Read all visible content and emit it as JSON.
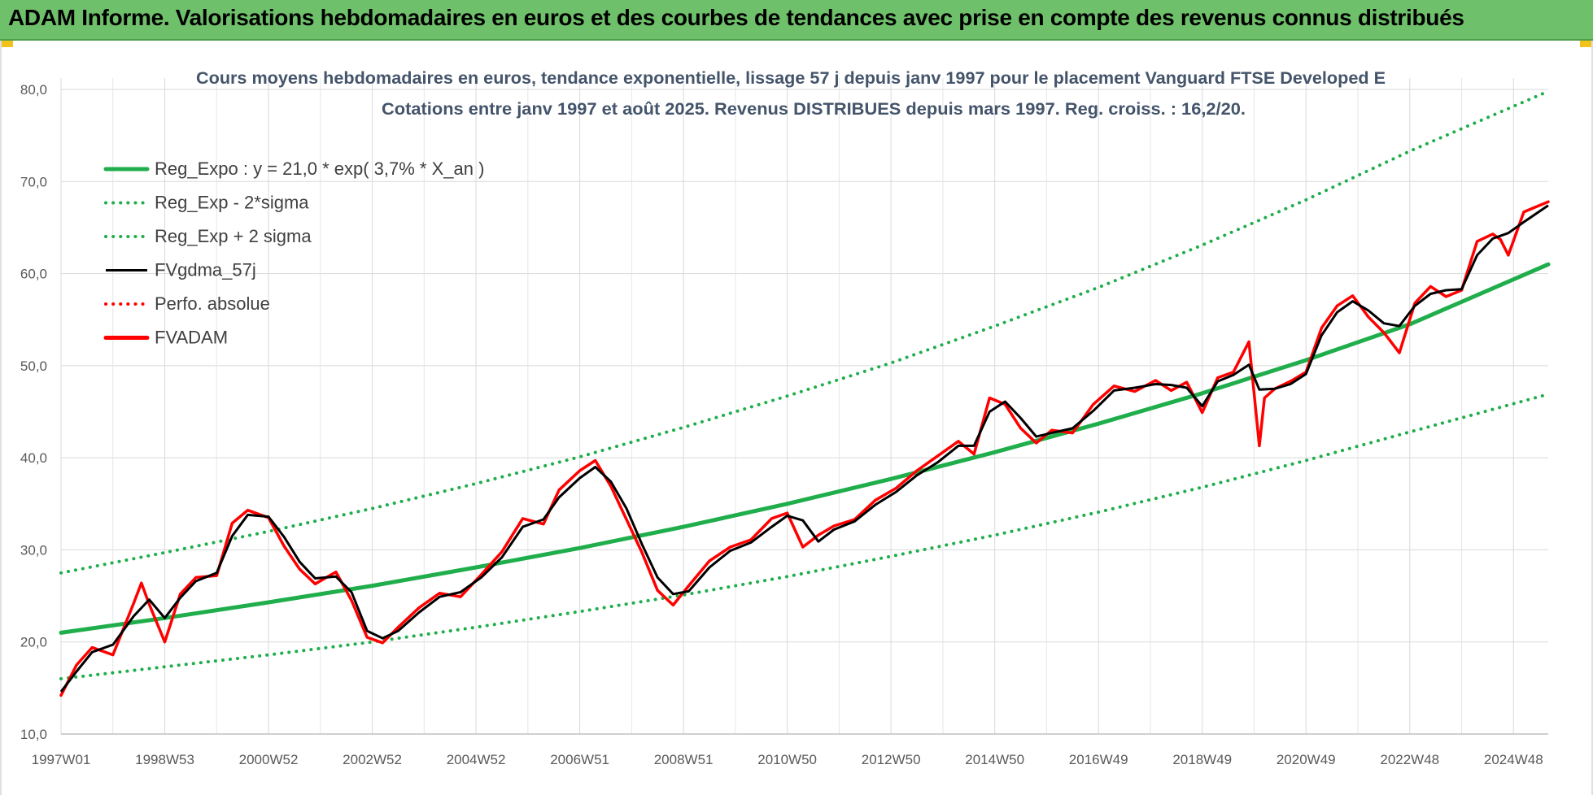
{
  "banner": {
    "title": "ADAM Informe. Valorisations hebdomadaires en euros et des courbes de tendances avec prise en compte des revenus connus distribués"
  },
  "colors": {
    "banner_bg": "#6fc06a",
    "trend_green": "#1fae4b",
    "price_red": "#ff0000",
    "smooth_black": "#000000",
    "grid": "#d9d9d9"
  },
  "chart_data": {
    "type": "line",
    "title": "Cours moyens hebdomadaires en euros, tendance exponentielle, lissage 57 j depuis janv 1997 pour le placement Vanguard FTSE Developed E",
    "subtitle": "Cotations entre janv 1997 et août 2025.  Revenus DISTRIBUES depuis mars 1997. Reg. croiss. : 16,2/20.",
    "xlabel": "",
    "ylabel": "",
    "ylim": [
      10,
      80
    ],
    "xlim": [
      1997.0,
      2025.67
    ],
    "grid": true,
    "legend_position": "top-left",
    "y_ticks": [
      "10,0",
      "20,0",
      "30,0",
      "40,0",
      "50,0",
      "60,0",
      "70,0",
      "80,0"
    ],
    "x_ticks": [
      {
        "label": "1997W01",
        "x": 1997.0
      },
      {
        "label": "1998W53",
        "x": 1999.0
      },
      {
        "label": "2000W52",
        "x": 2001.0
      },
      {
        "label": "2002W52",
        "x": 2003.0
      },
      {
        "label": "2004W52",
        "x": 2005.0
      },
      {
        "label": "2006W51",
        "x": 2007.0
      },
      {
        "label": "2008W51",
        "x": 2009.0
      },
      {
        "label": "2010W50",
        "x": 2011.0
      },
      {
        "label": "2012W50",
        "x": 2013.0
      },
      {
        "label": "2014W50",
        "x": 2015.0
      },
      {
        "label": "2016W49",
        "x": 2017.0
      },
      {
        "label": "2018W49",
        "x": 2019.0
      },
      {
        "label": "2020W49",
        "x": 2021.0
      },
      {
        "label": "2022W48",
        "x": 2023.0
      },
      {
        "label": "2024W48",
        "x": 2025.0
      }
    ],
    "legend": [
      {
        "name": "Reg_Expo : y = 21,0 * exp( 3,7% *  X_an )",
        "style": "solid-thick",
        "color": "#1fae4b"
      },
      {
        "name": "Reg_Exp - 2*sigma",
        "style": "dotted",
        "color": "#1fae4b"
      },
      {
        "name": "Reg_Exp + 2 sigma",
        "style": "dotted",
        "color": "#1fae4b"
      },
      {
        "name": "FVgdma_57j",
        "style": "solid",
        "color": "#000000"
      },
      {
        "name": "Perfo. absolue",
        "style": "dotted",
        "color": "#ff0000"
      },
      {
        "name": "FVADAM",
        "style": "solid-thick",
        "color": "#ff0000"
      }
    ],
    "series": [
      {
        "name": "Reg_Expo : y = 21,0 * exp( 3,7% *  X_an )",
        "x": [
          1997.0,
          1999.0,
          2001.0,
          2003.0,
          2005.0,
          2007.0,
          2009.0,
          2011.0,
          2013.0,
          2015.0,
          2017.0,
          2019.0,
          2021.0,
          2023.0,
          2025.67
        ],
        "values": [
          21.0,
          22.6,
          24.3,
          26.1,
          28.1,
          30.2,
          32.5,
          35.0,
          37.7,
          40.6,
          43.7,
          47.0,
          50.6,
          54.5,
          61.0
        ]
      },
      {
        "name": "Reg_Exp - 2*sigma",
        "x": [
          1997.0,
          1999.0,
          2001.0,
          2003.0,
          2005.0,
          2007.0,
          2009.0,
          2011.0,
          2013.0,
          2015.0,
          2017.0,
          2019.0,
          2021.0,
          2023.0,
          2025.67
        ],
        "values": [
          16.0,
          17.3,
          18.6,
          20.0,
          21.6,
          23.3,
          25.1,
          27.1,
          29.3,
          31.6,
          34.1,
          36.8,
          39.7,
          42.8,
          46.9
        ]
      },
      {
        "name": "Reg_Exp + 2 sigma",
        "x": [
          1997.0,
          1999.0,
          2001.0,
          2003.0,
          2005.0,
          2007.0,
          2009.0,
          2011.0,
          2013.0,
          2015.0,
          2017.0,
          2019.0,
          2021.0,
          2023.0,
          2025.67
        ],
        "values": [
          27.5,
          29.7,
          32.0,
          34.5,
          37.2,
          40.1,
          43.3,
          46.7,
          50.3,
          54.3,
          58.5,
          63.1,
          68.0,
          73.3,
          79.8
        ]
      },
      {
        "name": "FVgdma_57j",
        "x": [
          1997.0,
          1997.3,
          1997.6,
          1998.0,
          1998.4,
          1998.7,
          1999.0,
          1999.3,
          1999.6,
          2000.0,
          2000.3,
          2000.6,
          2001.0,
          2001.3,
          2001.6,
          2001.9,
          2002.3,
          2002.6,
          2002.9,
          2003.2,
          2003.5,
          2003.9,
          2004.3,
          2004.7,
          2005.1,
          2005.5,
          2005.9,
          2006.3,
          2006.6,
          2007.0,
          2007.3,
          2007.6,
          2007.9,
          2008.2,
          2008.5,
          2008.8,
          2009.1,
          2009.5,
          2009.9,
          2010.3,
          2010.7,
          2011.0,
          2011.3,
          2011.6,
          2011.9,
          2012.3,
          2012.7,
          2013.1,
          2013.5,
          2013.9,
          2014.3,
          2014.6,
          2014.9,
          2015.2,
          2015.5,
          2015.8,
          2016.1,
          2016.5,
          2016.9,
          2017.3,
          2017.7,
          2018.1,
          2018.4,
          2018.7,
          2019.0,
          2019.3,
          2019.6,
          2019.9,
          2020.1,
          2020.4,
          2020.7,
          2021.0,
          2021.3,
          2021.6,
          2021.9,
          2022.2,
          2022.5,
          2022.8,
          2023.1,
          2023.4,
          2023.7,
          2024.0,
          2024.3,
          2024.6,
          2024.9,
          2025.2,
          2025.67
        ],
        "values": [
          14.6,
          16.8,
          18.9,
          19.7,
          22.8,
          24.6,
          22.6,
          24.8,
          26.6,
          27.5,
          31.5,
          33.8,
          33.6,
          31.4,
          28.7,
          26.9,
          27.1,
          25.4,
          21.2,
          20.4,
          21.2,
          23.2,
          24.9,
          25.4,
          27.0,
          29.2,
          32.5,
          33.3,
          35.7,
          37.8,
          39.0,
          37.4,
          34.5,
          30.6,
          27.0,
          25.2,
          25.5,
          28.1,
          29.9,
          30.8,
          32.5,
          33.7,
          33.2,
          30.9,
          32.2,
          33.1,
          34.9,
          36.3,
          38.1,
          39.5,
          41.3,
          41.3,
          45.0,
          46.1,
          44.3,
          42.3,
          42.7,
          43.2,
          45.1,
          47.3,
          47.6,
          48.0,
          47.9,
          47.6,
          45.6,
          48.3,
          49.0,
          50.1,
          47.4,
          47.5,
          48.0,
          49.1,
          53.3,
          55.8,
          57.0,
          56.0,
          54.6,
          54.3,
          56.5,
          57.8,
          58.2,
          58.3,
          62.0,
          63.8,
          64.4,
          65.6,
          67.4
        ]
      },
      {
        "name": "FVADAM",
        "x": [
          1997.0,
          1997.3,
          1997.6,
          1998.0,
          1998.4,
          1998.55,
          1998.7,
          1999.0,
          1999.3,
          1999.6,
          2000.0,
          2000.3,
          2000.6,
          2001.0,
          2001.3,
          2001.6,
          2001.9,
          2002.3,
          2002.6,
          2002.9,
          2003.2,
          2003.5,
          2003.9,
          2004.3,
          2004.7,
          2005.1,
          2005.5,
          2005.9,
          2006.3,
          2006.6,
          2007.0,
          2007.3,
          2007.6,
          2007.9,
          2008.2,
          2008.5,
          2008.8,
          2009.1,
          2009.5,
          2009.9,
          2010.3,
          2010.7,
          2011.0,
          2011.3,
          2011.6,
          2011.9,
          2012.3,
          2012.7,
          2013.1,
          2013.5,
          2013.9,
          2014.3,
          2014.6,
          2014.9,
          2015.2,
          2015.5,
          2015.8,
          2016.1,
          2016.5,
          2016.9,
          2017.3,
          2017.7,
          2018.1,
          2018.4,
          2018.7,
          2019.0,
          2019.3,
          2019.6,
          2019.9,
          2020.1,
          2020.2,
          2020.4,
          2020.7,
          2021.0,
          2021.3,
          2021.6,
          2021.9,
          2022.2,
          2022.5,
          2022.8,
          2023.1,
          2023.4,
          2023.7,
          2024.0,
          2024.3,
          2024.6,
          2024.75,
          2024.9,
          2025.2,
          2025.67
        ],
        "values": [
          14.2,
          17.5,
          19.4,
          18.6,
          24.2,
          26.4,
          24.1,
          20.0,
          25.2,
          27.0,
          27.2,
          32.9,
          34.3,
          33.5,
          30.4,
          27.9,
          26.3,
          27.6,
          24.5,
          20.5,
          19.9,
          21.6,
          23.7,
          25.3,
          24.9,
          27.3,
          29.8,
          33.4,
          32.8,
          36.5,
          38.6,
          39.7,
          36.9,
          33.3,
          29.7,
          25.6,
          24.0,
          26.1,
          28.8,
          30.3,
          31.1,
          33.4,
          34.0,
          30.3,
          31.6,
          32.6,
          33.3,
          35.4,
          36.7,
          38.6,
          40.2,
          41.8,
          40.4,
          46.5,
          45.8,
          43.2,
          41.6,
          43.0,
          42.7,
          45.8,
          47.8,
          47.2,
          48.4,
          47.3,
          48.2,
          44.9,
          48.7,
          49.3,
          52.6,
          41.3,
          46.5,
          47.5,
          48.3,
          49.3,
          54.1,
          56.5,
          57.6,
          55.3,
          53.6,
          51.4,
          56.8,
          58.6,
          57.5,
          58.2,
          63.5,
          64.3,
          63.7,
          62.0,
          66.7,
          67.8
        ]
      }
    ]
  }
}
